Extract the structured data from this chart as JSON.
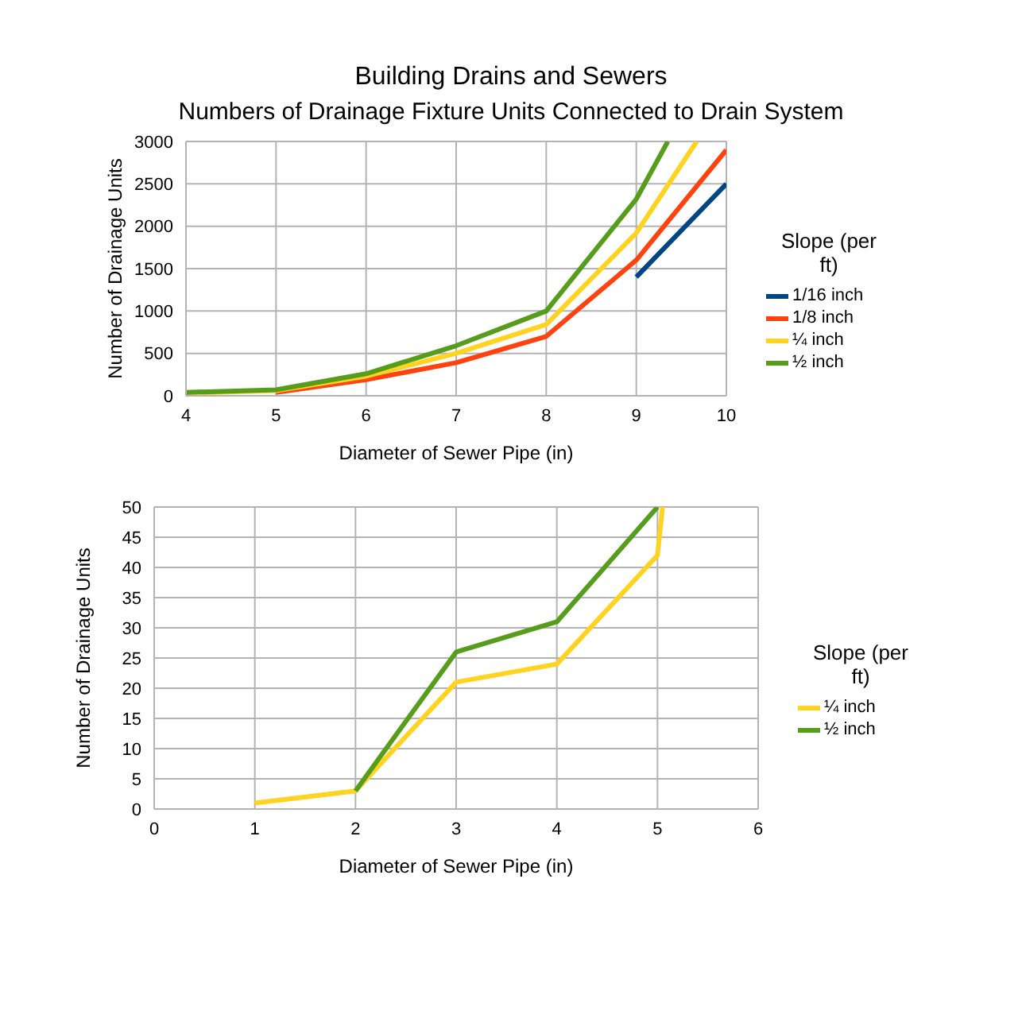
{
  "chart_data": [
    {
      "type": "line",
      "title": "Building Drains and Sewers",
      "subtitle": "Numbers of Drainage Fixture Units Connected to Drain System",
      "xlabel": "Diameter of Sewer Pipe (in)",
      "ylabel": "Number of Drainage Units",
      "legend_title": "Slope (per ft)",
      "xlim": [
        4,
        10
      ],
      "xticks": [
        4,
        5,
        6,
        7,
        8,
        9,
        10
      ],
      "ylim": [
        0,
        3000
      ],
      "yticks": [
        0,
        500,
        1000,
        1500,
        2000,
        2500,
        3000
      ],
      "grid": true,
      "legend": "right",
      "marker": "none",
      "line_style": "solid",
      "series": [
        {
          "name": "1/16 inch",
          "color": "#004586",
          "x": [
            9,
            10
          ],
          "values": [
            1400,
            2500
          ]
        },
        {
          "name": "1/8 inch",
          "color": "#ff420e",
          "x": [
            5,
            6,
            7,
            8,
            9,
            10
          ],
          "values": [
            40,
            190,
            390,
            700,
            1600,
            2900
          ]
        },
        {
          "name": "¼ inch",
          "color": "#ffd320",
          "x": [
            4,
            5,
            6,
            7,
            8,
            9,
            9.67
          ],
          "values": [
            30,
            60,
            230,
            500,
            840,
            1920,
            3000
          ]
        },
        {
          "name": "½ inch",
          "color": "#579d1c",
          "x": [
            4,
            5,
            6,
            7,
            8,
            9,
            9.35
          ],
          "values": [
            40,
            70,
            260,
            590,
            1000,
            2320,
            3000
          ]
        }
      ]
    },
    {
      "type": "line",
      "xlabel": "Diameter of Sewer Pipe (in)",
      "ylabel": "Number of Drainage Units",
      "legend_title": "Slope (per ft)",
      "xlim": [
        0,
        6
      ],
      "xticks": [
        0,
        1,
        2,
        3,
        4,
        5,
        6
      ],
      "ylim": [
        0,
        50
      ],
      "yticks": [
        0,
        5,
        10,
        15,
        20,
        25,
        30,
        35,
        40,
        45,
        50
      ],
      "grid": true,
      "legend": "right",
      "marker": "none",
      "line_style": "solid",
      "series": [
        {
          "name": "¼ inch",
          "color": "#ffd320",
          "x": [
            1,
            2,
            3,
            4,
            5,
            5.05
          ],
          "values": [
            1,
            3,
            21,
            24,
            42,
            50
          ]
        },
        {
          "name": "½ inch",
          "color": "#579d1c",
          "x": [
            2,
            3,
            4,
            5
          ],
          "values": [
            3,
            26,
            31,
            50
          ]
        }
      ]
    }
  ]
}
